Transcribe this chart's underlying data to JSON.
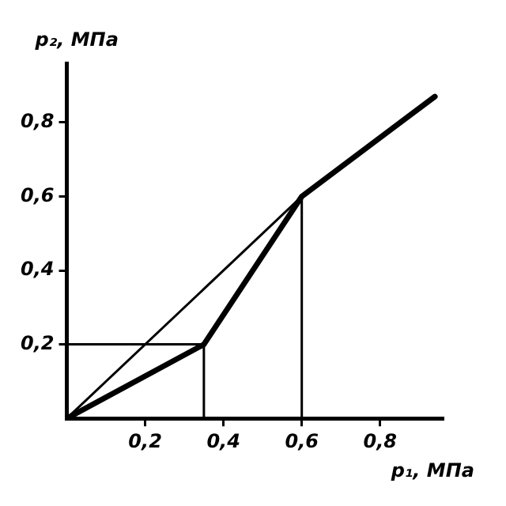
{
  "chart_data": {
    "type": "line",
    "xlabel": "p₁, МПа",
    "ylabel": "p₂, МПа",
    "xlim": [
      0,
      0.96
    ],
    "ylim": [
      0,
      0.96
    ],
    "xticks": [
      {
        "value": 0.2,
        "label": "0,2"
      },
      {
        "value": 0.4,
        "label": "0,4"
      },
      {
        "value": 0.6,
        "label": "0,6"
      },
      {
        "value": 0.8,
        "label": "0,8"
      }
    ],
    "yticks": [
      {
        "value": 0.2,
        "label": "0,2"
      },
      {
        "value": 0.4,
        "label": "0,4"
      },
      {
        "value": 0.6,
        "label": "0,6"
      },
      {
        "value": 0.8,
        "label": "0,8"
      }
    ],
    "series": [
      {
        "color": "#000000",
        "x": [
          0,
          0.35,
          0.6,
          0.94
        ],
        "values": [
          0,
          0.2,
          0.6,
          0.87
        ]
      },
      {
        "color": "#000000",
        "x": [
          0,
          0.6
        ],
        "values": [
          0,
          0.6
        ]
      },
      {
        "color": "#000000",
        "x": [
          0,
          0.35
        ],
        "values": [
          0.2,
          0.2
        ]
      },
      {
        "color": "#000000",
        "x": [
          0.35,
          0.35
        ],
        "values": [
          0,
          0.2
        ]
      },
      {
        "color": "#000000",
        "x": [
          0.6,
          0.6
        ],
        "values": [
          0,
          0.6
        ]
      }
    ],
    "grid": false,
    "legend": false,
    "marker": "none",
    "line_style": "solid"
  }
}
